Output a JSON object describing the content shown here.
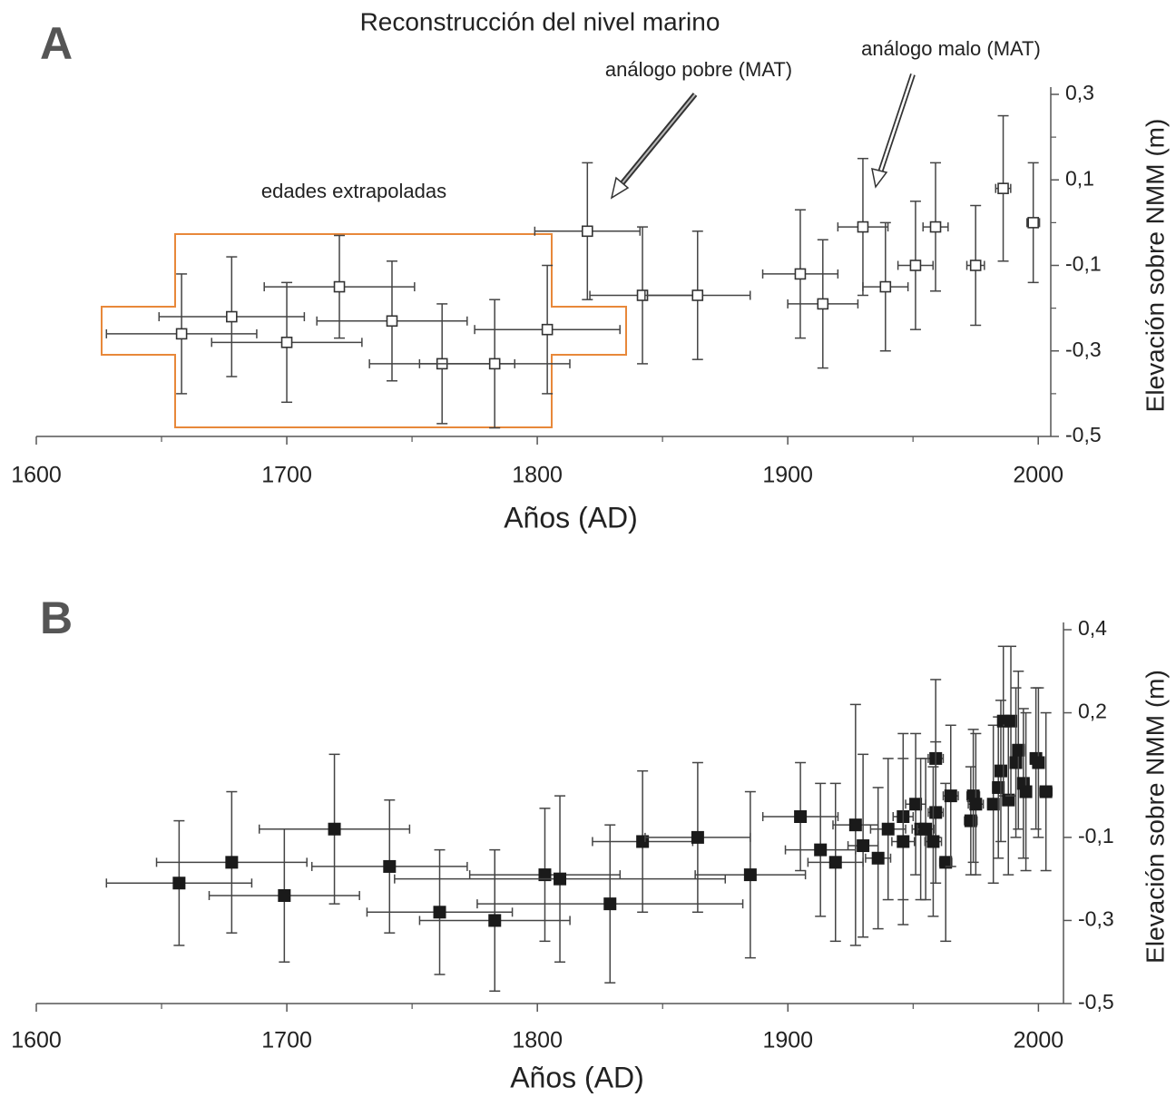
{
  "chart_data": [
    {
      "type": "scatter",
      "panel_label": "A",
      "title": "Reconstrucción del nivel marino",
      "annotations": [
        "edades extrapoladas",
        "análogo pobre (MAT)",
        "análogo malo (MAT)"
      ],
      "x_label": "Años (AD)",
      "y_label": "Elevación sobre NMM (m)",
      "marker": "open-square",
      "color": "#333333",
      "x": [
        1658,
        1678,
        1700,
        1721,
        1742,
        1762,
        1783,
        1804,
        1820,
        1842,
        1864,
        1905,
        1914,
        1930,
        1939,
        1951,
        1959,
        1975,
        1986,
        1998
      ],
      "values": [
        -0.26,
        -0.22,
        -0.28,
        -0.15,
        -0.23,
        -0.33,
        -0.33,
        -0.25,
        -0.02,
        -0.17,
        -0.17,
        -0.12,
        -0.19,
        -0.01,
        -0.15,
        -0.1,
        -0.01,
        -0.1,
        0.08,
        0.0
      ],
      "xerr": [
        30,
        29,
        30,
        30,
        30,
        29,
        30,
        29,
        21,
        21,
        21,
        15,
        14,
        10,
        9,
        7,
        5,
        3.5,
        3,
        2.5
      ],
      "yerr": [
        0.14,
        0.14,
        0.14,
        0.12,
        0.14,
        0.14,
        0.15,
        0.15,
        0.16,
        0.16,
        0.15,
        0.15,
        0.15,
        0.16,
        0.15,
        0.15,
        0.15,
        0.14,
        0.17,
        0.14
      ],
      "xlim": [
        1600,
        2005
      ],
      "ylim": [
        -0.5,
        0.3
      ],
      "xticks": [
        1600,
        1700,
        1800,
        1900,
        2000
      ],
      "xminor": [
        1650,
        1750,
        1850,
        1950
      ],
      "yticks": [
        {
          "value": 0.3,
          "label": "0,3"
        },
        {
          "value": 0.1,
          "label": "0,1"
        },
        {
          "value": -0.1,
          "label": "-0,1"
        },
        {
          "value": -0.3,
          "label": "-0,3"
        },
        {
          "value": -0.5,
          "label": "-0,5"
        }
      ],
      "yminor": [
        0.2,
        0.0,
        -0.2,
        -0.4
      ]
    },
    {
      "type": "scatter",
      "panel_label": "B",
      "x_label": "Años (AD)",
      "y_label": "Elevación sobre NMM (m)",
      "marker": "filled-square",
      "color": "#1a1a1a",
      "x": [
        1657,
        1678,
        1699,
        1719,
        1741,
        1761,
        1783,
        1803,
        1809,
        1829,
        1842,
        1864,
        1885,
        1905,
        1913,
        1919,
        1927,
        1930,
        1940,
        1936,
        1946,
        1946,
        1951,
        1953,
        1955,
        1959,
        1959,
        1958,
        1963,
        1965,
        1973,
        1974,
        1975,
        1982,
        1984,
        1985,
        1986,
        1988,
        1989,
        1991,
        1992,
        1994,
        1995,
        1999,
        2000,
        2003
      ],
      "values": [
        -0.21,
        -0.16,
        -0.24,
        -0.08,
        -0.17,
        -0.28,
        -0.3,
        -0.19,
        -0.2,
        -0.26,
        -0.11,
        -0.1,
        -0.19,
        -0.05,
        -0.13,
        -0.16,
        -0.07,
        -0.12,
        -0.08,
        -0.15,
        -0.05,
        -0.11,
        -0.02,
        -0.08,
        -0.08,
        0.09,
        -0.04,
        -0.11,
        -0.16,
        0.0,
        -0.06,
        0.0,
        -0.02,
        -0.02,
        0.02,
        0.06,
        0.18,
        -0.01,
        0.18,
        0.08,
        0.11,
        0.03,
        0.01,
        0.09,
        0.08,
        0.01
      ],
      "xerr": [
        29,
        30,
        30,
        30,
        31,
        29,
        30,
        30,
        66,
        53,
        20,
        21,
        22,
        15,
        14,
        11,
        9,
        6,
        7,
        5,
        4,
        4.5,
        4,
        3.4,
        3.3,
        3,
        3,
        3.3,
        2.4,
        3,
        2.5,
        2.5,
        3,
        2.2,
        2.2,
        2.2,
        2.2,
        2.2,
        2.2,
        2.2,
        2.2,
        2.2,
        2.2,
        2.2,
        2.2,
        2.4
      ],
      "yerr": [
        0.15,
        0.17,
        0.16,
        0.18,
        0.16,
        0.15,
        0.17,
        0.16,
        0.2,
        0.19,
        0.17,
        0.18,
        0.2,
        0.13,
        0.16,
        0.19,
        0.29,
        0.22,
        0.17,
        0.17,
        0.2,
        0.2,
        0.17,
        0.17,
        0.17,
        0.19,
        0.17,
        0.18,
        0.19,
        0.17,
        0.13,
        0.16,
        0.17,
        0.19,
        0.17,
        0.17,
        0.18,
        0.18,
        0.18,
        0.18,
        0.19,
        0.18,
        0.19,
        0.17,
        0.18,
        0.19
      ],
      "xlim": [
        1600,
        2010
      ],
      "ylim": [
        -0.5,
        0.4
      ],
      "xticks": [
        1600,
        1700,
        1800,
        1900,
        2000
      ],
      "xminor": [
        1650,
        1750,
        1850,
        1950
      ],
      "yticks": [
        {
          "value": 0.4,
          "label": "0,4"
        },
        {
          "value": 0.2,
          "label": "0,2"
        },
        {
          "value": -0.1,
          "label": "-0,1"
        },
        {
          "value": -0.3,
          "label": "-0,3"
        },
        {
          "value": -0.5,
          "label": "-0,5"
        }
      ]
    }
  ]
}
